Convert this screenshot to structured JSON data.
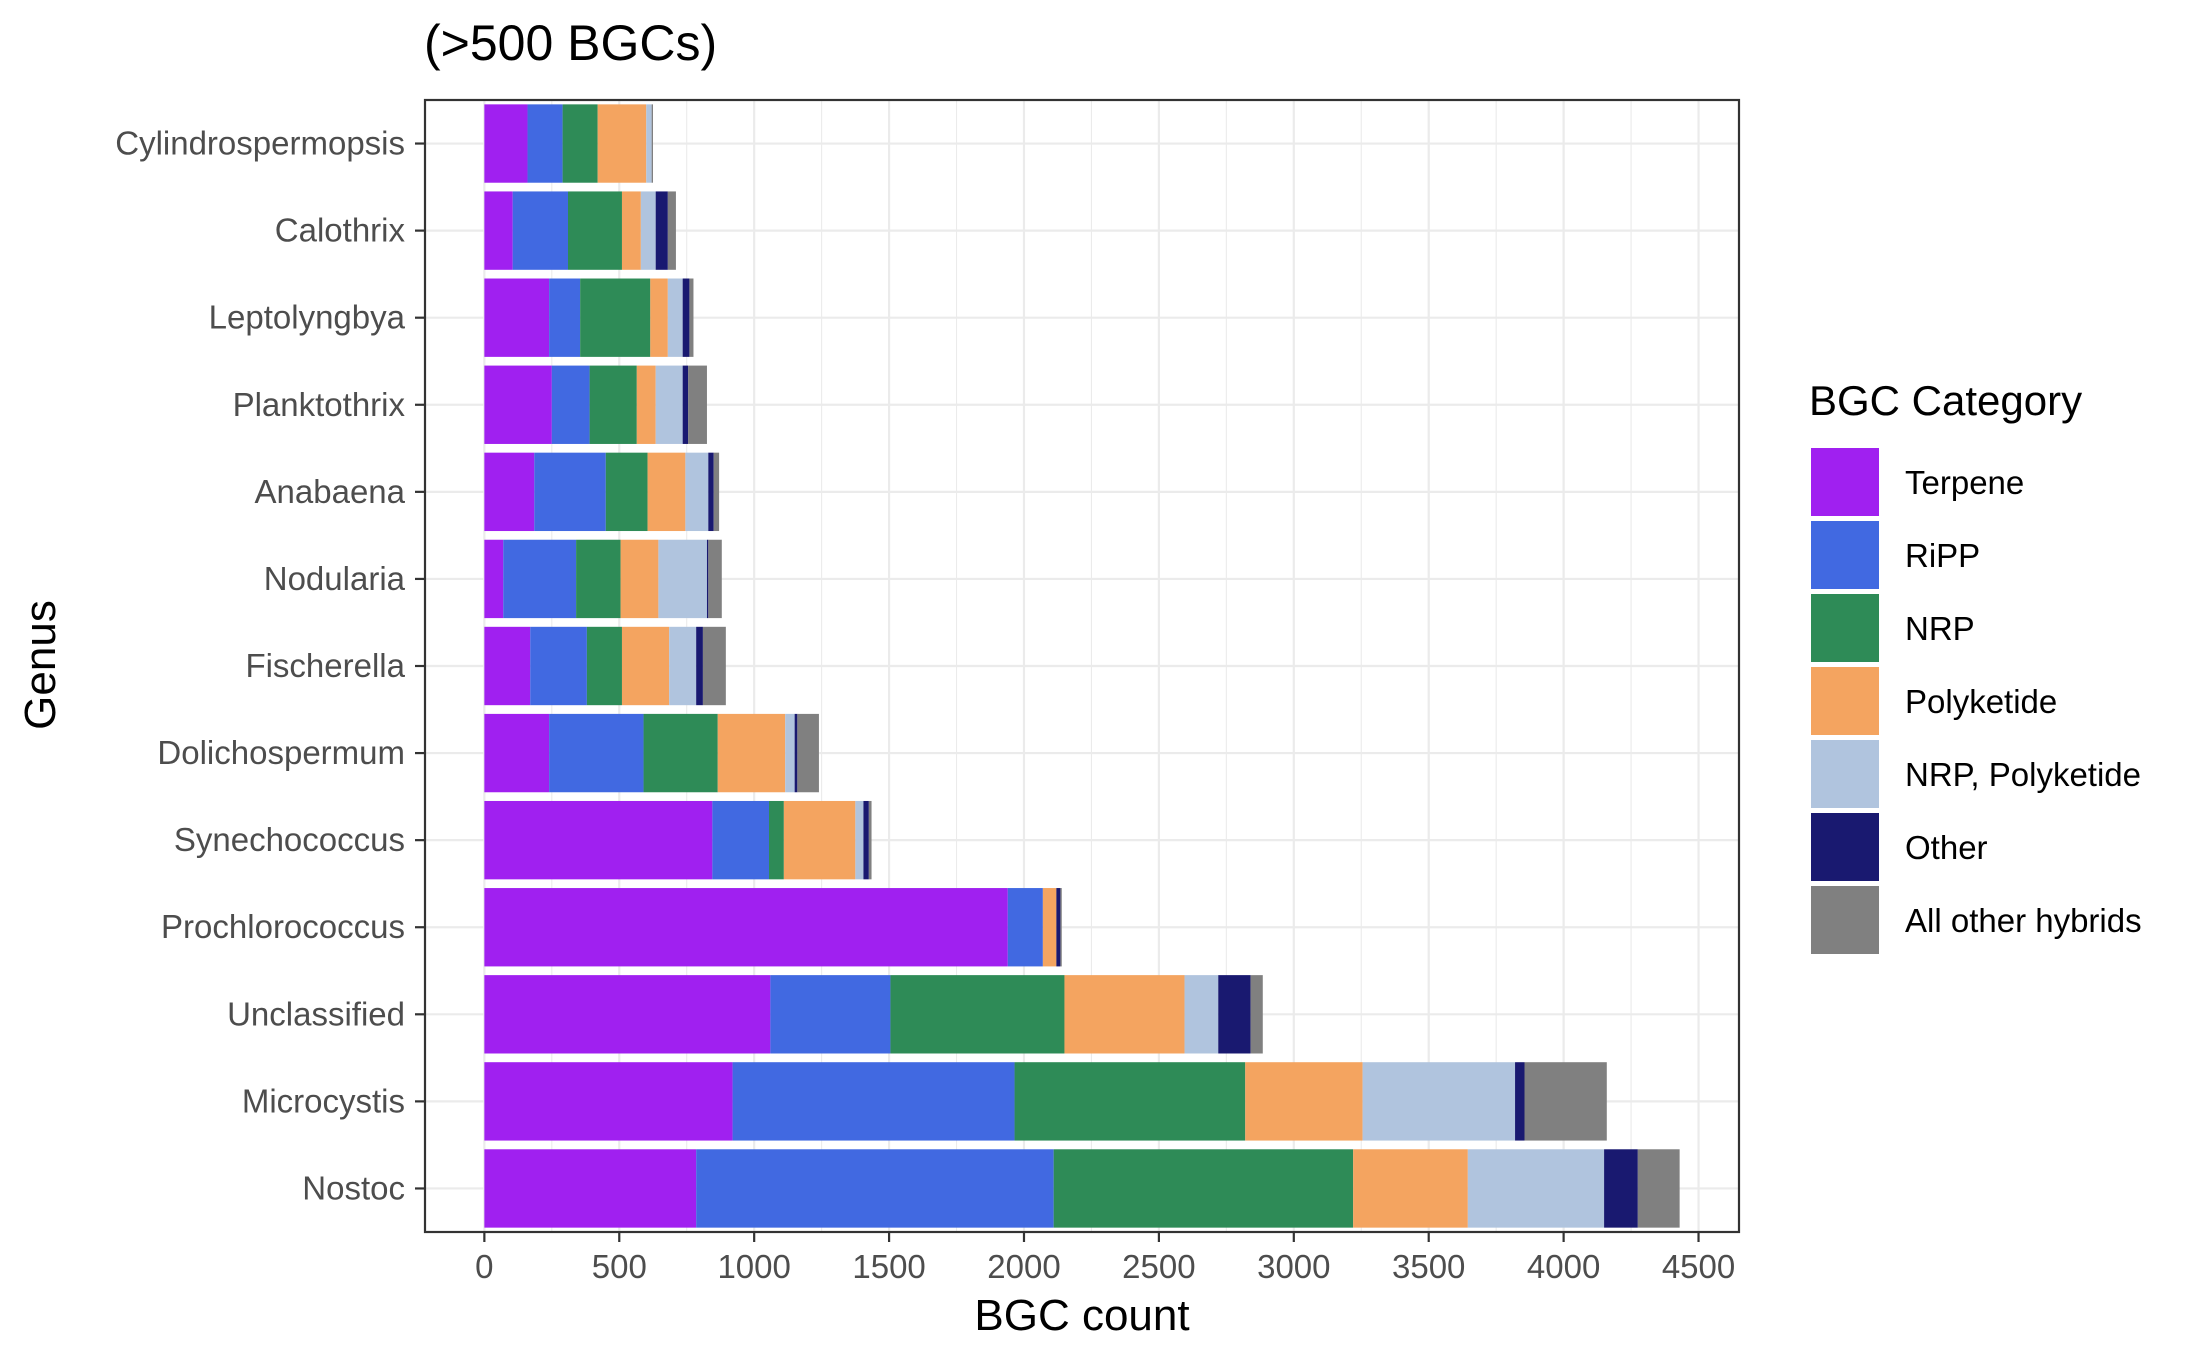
{
  "chart_data": {
    "type": "bar",
    "orientation": "horizontal",
    "stacked": true,
    "title": "(>500 BGCs)",
    "xlabel": "BGC count",
    "ylabel": "Genus",
    "xlim": [
      -220,
      4650
    ],
    "xticks": [
      0,
      500,
      1000,
      1500,
      2000,
      2500,
      3000,
      3500,
      4000,
      4500
    ],
    "grid": true,
    "legend_title": "BGC Category",
    "legend_position": "right",
    "categories": [
      "Cylindrospermopsis",
      "Calothrix",
      "Leptolyngbya",
      "Planktothrix",
      "Anabaena",
      "Nodularia",
      "Fischerella",
      "Dolichospermum",
      "Synechococcus",
      "Prochlorococcus",
      "Unclassified",
      "Microcystis",
      "Nostoc"
    ],
    "series": [
      {
        "name": "Terpene",
        "color": "#A020F0",
        "values": [
          160,
          105,
          240,
          250,
          185,
          70,
          170,
          240,
          845,
          1940,
          1060,
          920,
          785
        ]
      },
      {
        "name": "RiPP",
        "color": "#4169E1",
        "values": [
          130,
          205,
          115,
          140,
          265,
          270,
          210,
          350,
          210,
          130,
          445,
          1045,
          1325
        ]
      },
      {
        "name": "NRP",
        "color": "#2E8B57",
        "values": [
          130,
          200,
          260,
          175,
          155,
          165,
          130,
          275,
          55,
          0,
          645,
          855,
          1110
        ]
      },
      {
        "name": "Polyketide",
        "color": "#F4A460",
        "values": [
          180,
          70,
          65,
          70,
          140,
          140,
          175,
          250,
          265,
          50,
          445,
          435,
          425
        ]
      },
      {
        "name": "NRP, Polyketide",
        "color": "#B0C4DE",
        "values": [
          20,
          55,
          55,
          100,
          85,
          180,
          100,
          35,
          30,
          0,
          125,
          565,
          505
        ]
      },
      {
        "name": "Other",
        "color": "#191970",
        "values": [
          0,
          45,
          25,
          20,
          20,
          5,
          25,
          10,
          20,
          15,
          120,
          35,
          125
        ]
      },
      {
        "name": "All other hybrids",
        "color": "#808080",
        "values": [
          5,
          30,
          15,
          70,
          20,
          50,
          85,
          80,
          10,
          5,
          45,
          305,
          155
        ]
      }
    ]
  }
}
